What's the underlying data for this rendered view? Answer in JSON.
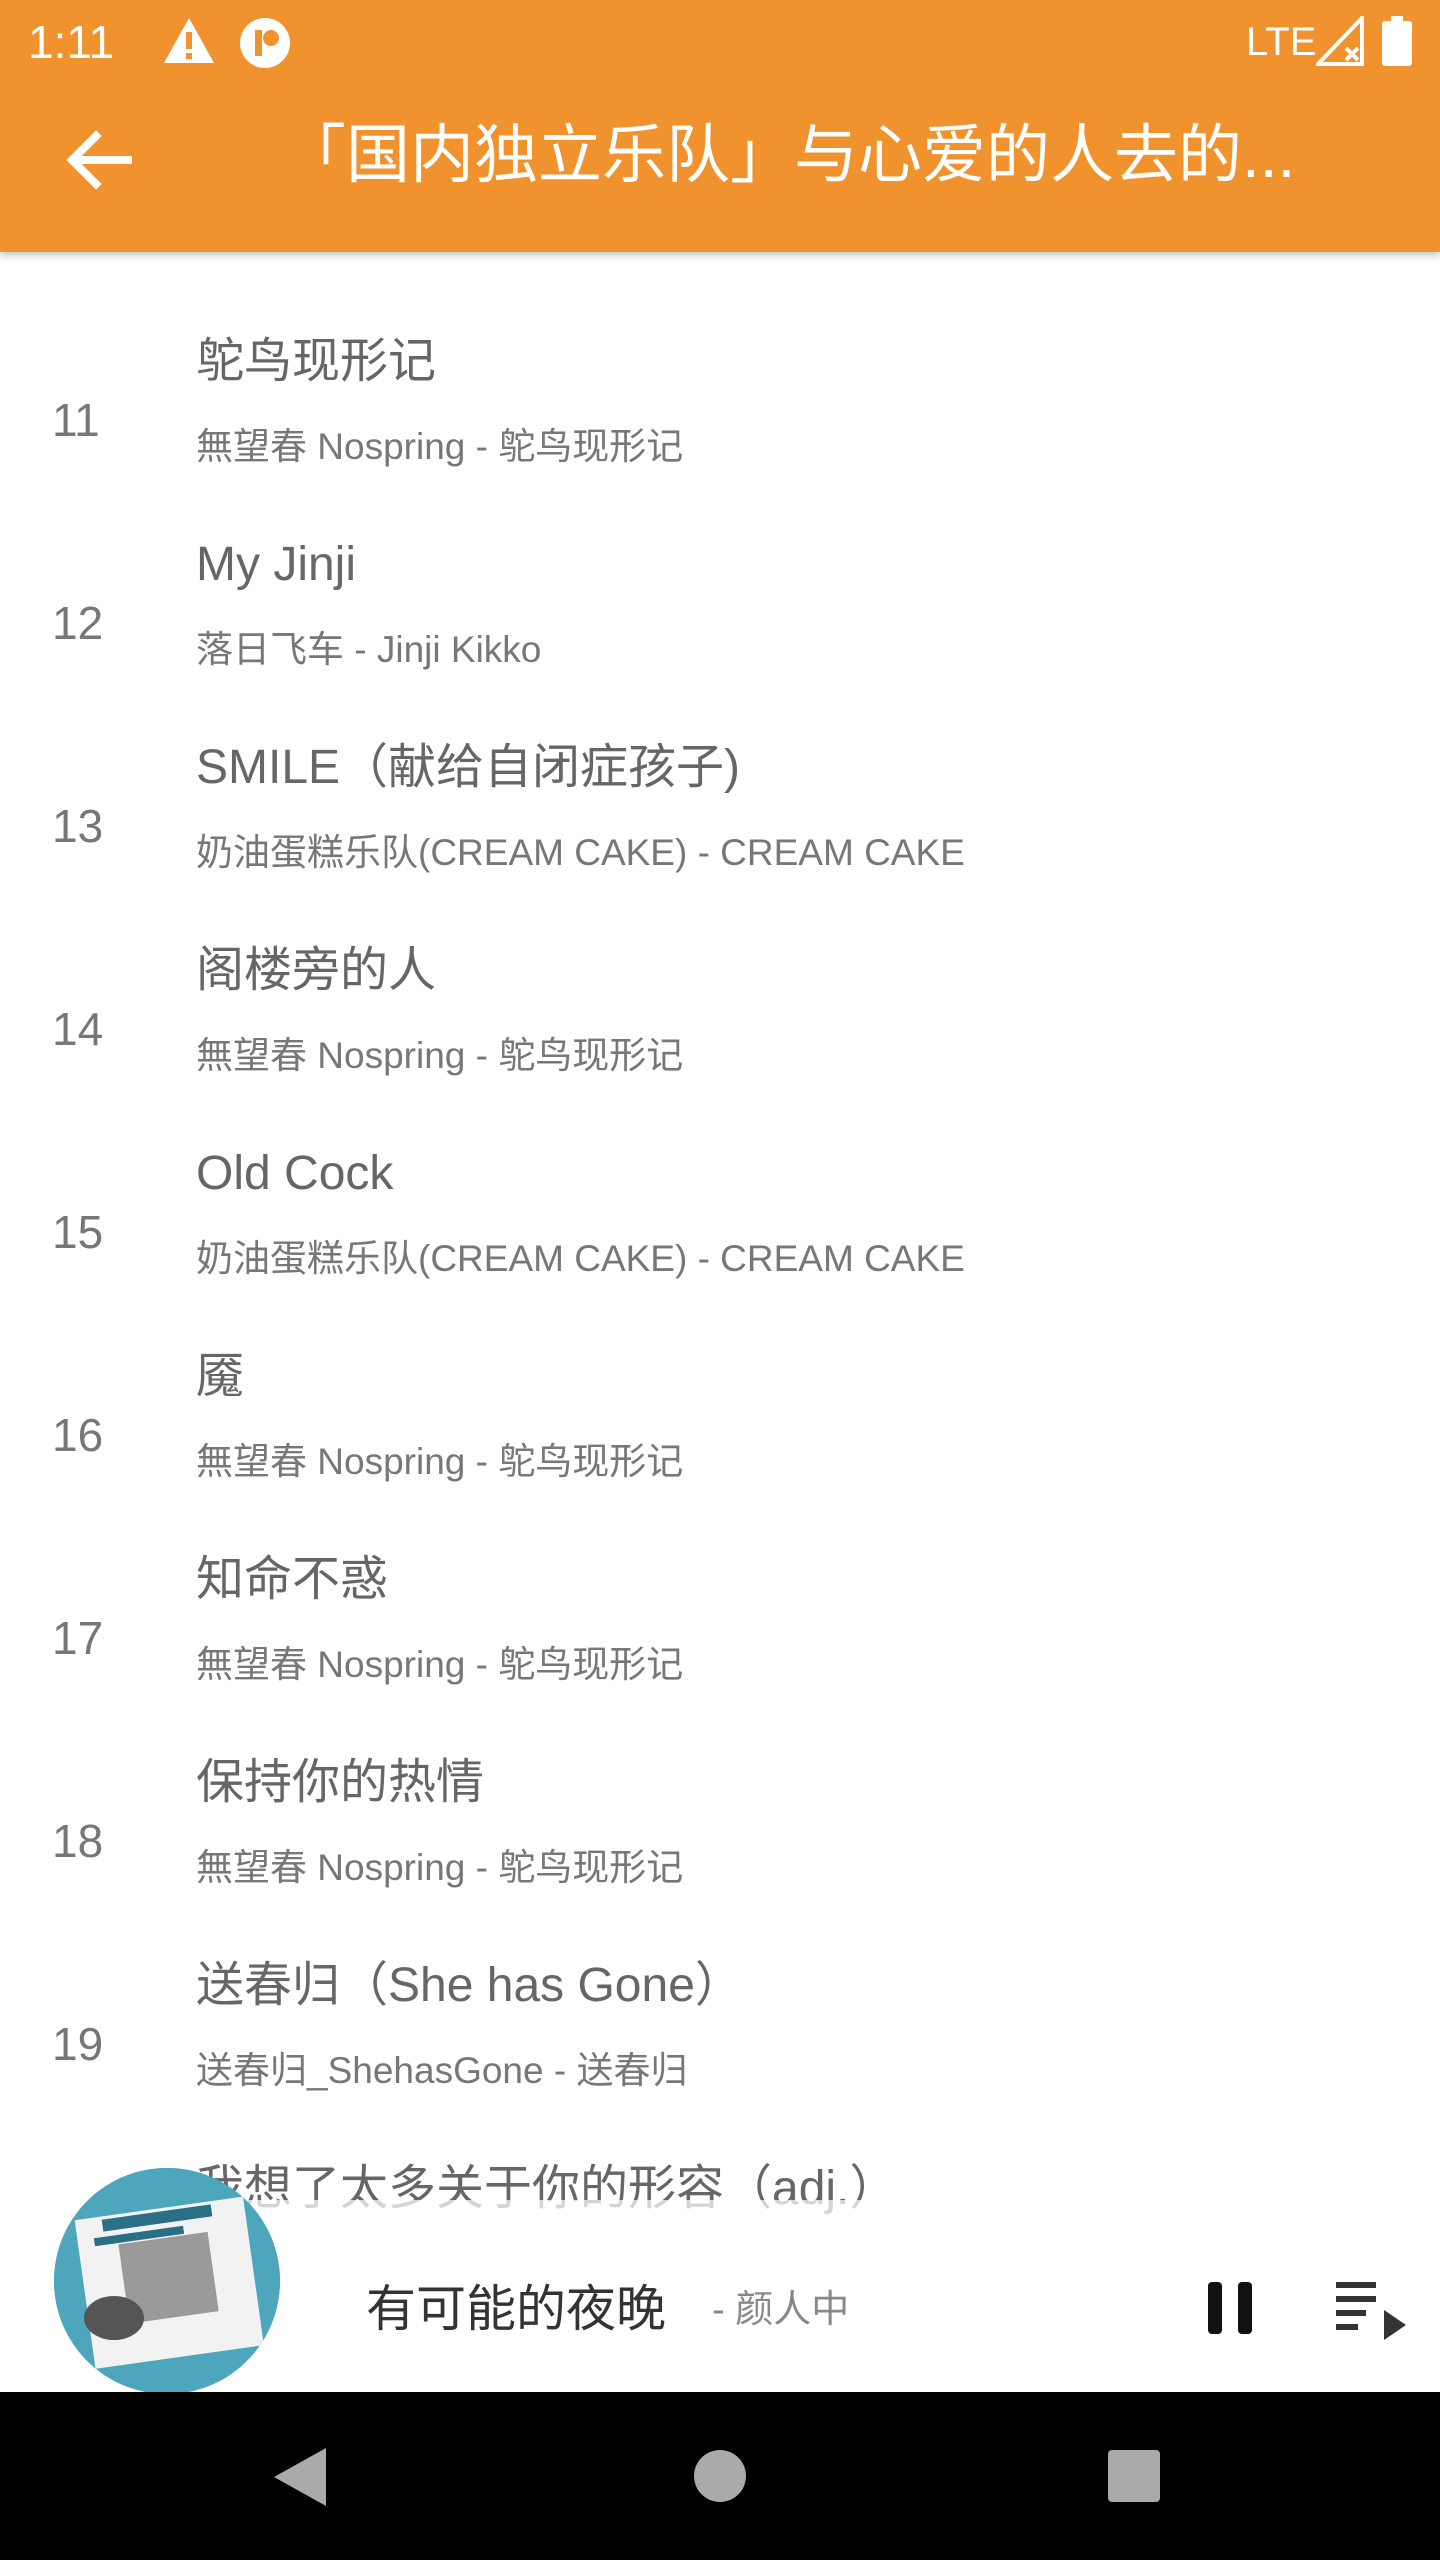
{
  "status_bar": {
    "time": "1:11",
    "network": "LTE",
    "icons": [
      "warning-icon",
      "app-notification-icon",
      "signal-icon",
      "battery-icon"
    ]
  },
  "app_bar": {
    "title": "「国内独立乐队」与心爱的人去的...",
    "back_icon": "arrow-left-icon"
  },
  "songs": [
    {
      "index": "11",
      "title": "鸵鸟现形记",
      "subtitle": "無望春 Nospring - 鸵鸟现形记"
    },
    {
      "index": "12",
      "title": "My Jinji",
      "subtitle": "落日飞车 - Jinji Kikko"
    },
    {
      "index": "13",
      "title": "SMILE（献给自闭症孩子)",
      "subtitle": "奶油蛋糕乐队(CREAM CAKE) - CREAM CAKE"
    },
    {
      "index": "14",
      "title": "阁楼旁的人",
      "subtitle": "無望春 Nospring - 鸵鸟现形记"
    },
    {
      "index": "15",
      "title": "Old Cock",
      "subtitle": "奶油蛋糕乐队(CREAM CAKE) - CREAM CAKE"
    },
    {
      "index": "16",
      "title": "魇",
      "subtitle": "無望春 Nospring - 鸵鸟现形记"
    },
    {
      "index": "17",
      "title": "知命不惑",
      "subtitle": "無望春 Nospring - 鸵鸟现形记"
    },
    {
      "index": "18",
      "title": "保持你的热情",
      "subtitle": "無望春 Nospring - 鸵鸟现形记"
    },
    {
      "index": "19",
      "title": "送春归（She has Gone）",
      "subtitle": "送春归_ShehasGone - 送春归"
    },
    {
      "index": "",
      "title": "我想了太多关于你的形容（adj.）",
      "subtitle": ""
    }
  ],
  "now_playing": {
    "song": "有可能的夜晚",
    "artist": "- 颜人中",
    "pause_icon": "pause-icon",
    "queue_icon": "playlist-play-icon"
  },
  "colors": {
    "accent": "#F0922D",
    "navbar": "#000000",
    "text_primary": "#666666",
    "text_secondary": "#777777"
  }
}
